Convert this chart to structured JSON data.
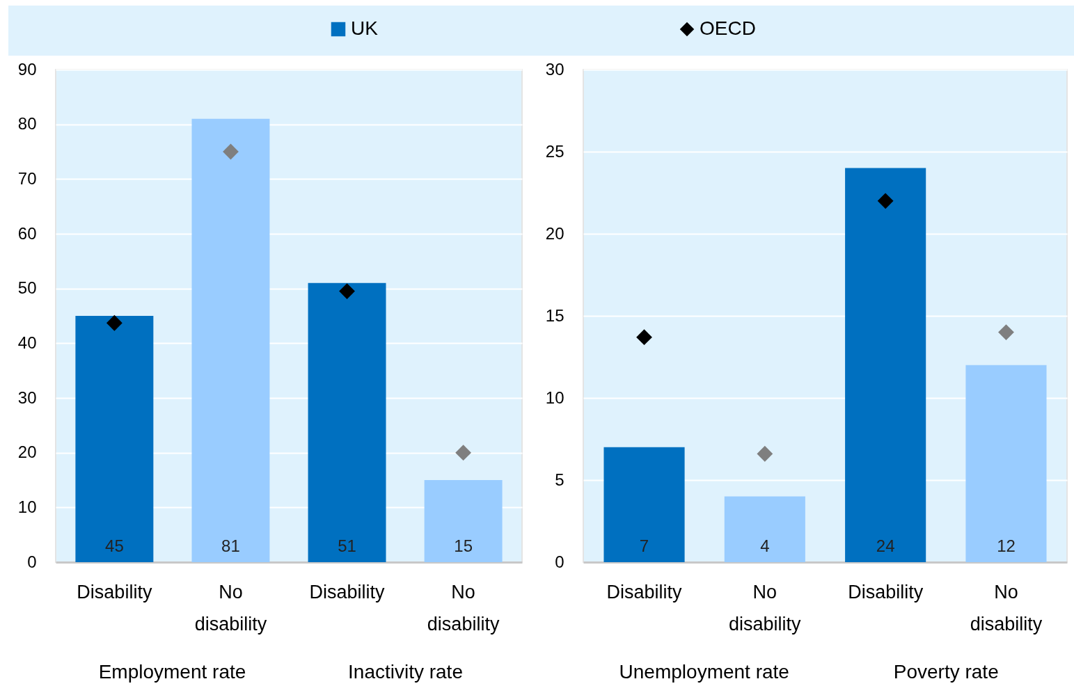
{
  "chart_data": [
    {
      "type": "bar",
      "categories": [
        "Disability",
        "No disability",
        "Disability",
        "No disability"
      ],
      "ylim": [
        0,
        90
      ],
      "yticks": [
        0,
        10,
        20,
        30,
        40,
        50,
        60,
        70,
        80,
        90
      ],
      "grid": "y",
      "legend": "top",
      "marker": "diamond",
      "annotations": [
        "Employment rate",
        "Inactivity rate"
      ],
      "series": [
        {
          "name": "UK",
          "color": "#0070c0",
          "colors": [
            "#0070c0",
            "#99ccff",
            "#0070c0",
            "#99ccff"
          ],
          "values": [
            45,
            81,
            51,
            15
          ],
          "value_labels": [
            "45",
            "81",
            "51",
            "15"
          ]
        },
        {
          "name": "OECD",
          "type": "scatter",
          "color": "#000000",
          "colors": [
            "#000000",
            "#7f7f7f",
            "#000000",
            "#7f7f7f"
          ],
          "values": [
            43.7,
            75,
            49.5,
            20
          ]
        }
      ]
    },
    {
      "type": "bar",
      "categories": [
        "Disability",
        "No disability",
        "Disability",
        "No disability"
      ],
      "ylim": [
        0,
        30
      ],
      "yticks": [
        0,
        5,
        10,
        15,
        20,
        25,
        30
      ],
      "grid": "y",
      "marker": "diamond",
      "annotations": [
        "Unemployment rate",
        "Poverty rate"
      ],
      "series": [
        {
          "colors": [
            "#0070c0",
            "#99ccff",
            "#0070c0",
            "#99ccff"
          ],
          "values": [
            7,
            4,
            24,
            12
          ],
          "value_labels": [
            "7",
            "4",
            "24",
            "12"
          ]
        },
        {
          "type": "scatter",
          "colors": [
            "#000000",
            "#7f7f7f",
            "#000000",
            "#7f7f7f"
          ],
          "values": [
            13.7,
            6.6,
            22,
            14
          ]
        }
      ]
    }
  ]
}
